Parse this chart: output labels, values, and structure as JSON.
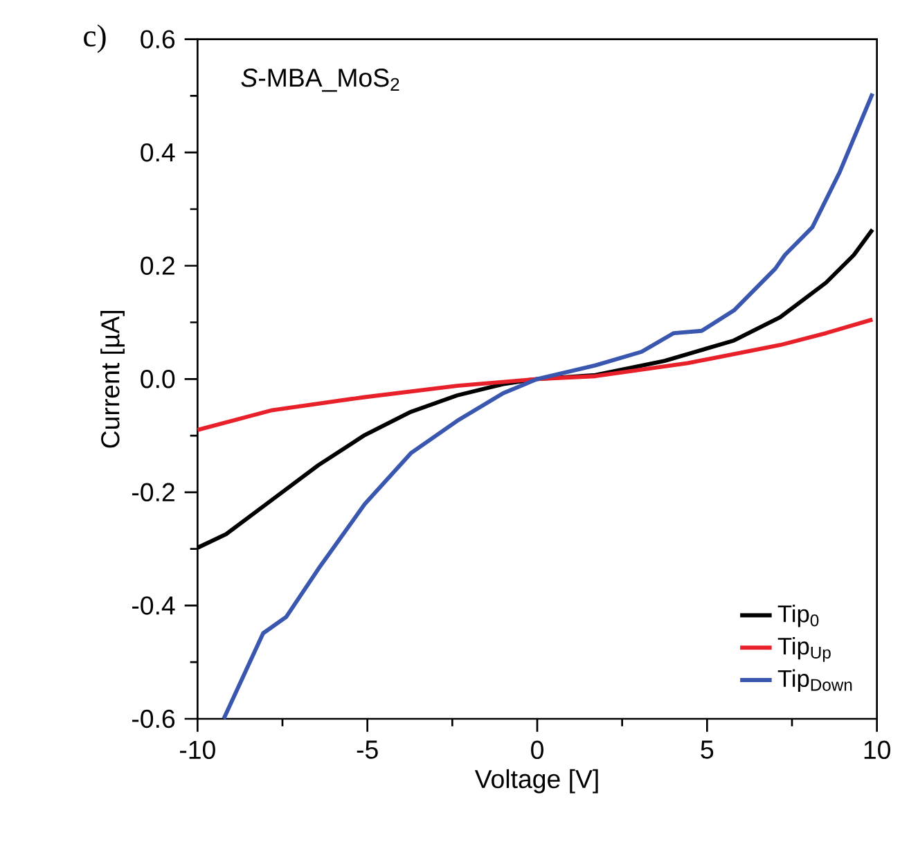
{
  "chart_data": {
    "type": "line",
    "xlabel": "Voltage [V]",
    "ylabel": "Current [µA]",
    "annotations": [
      "c)",
      "*S*-MBA_MoS$_{2}$"
    ],
    "xlim": [
      -10,
      10
    ],
    "ylim": [
      -0.6,
      0.6
    ],
    "xticks": [
      -10,
      -5,
      0,
      5,
      10
    ],
    "yticks": [
      {
        "value": -0.6,
        "label": "-0.6"
      },
      {
        "value": -0.4,
        "label": "-0.4"
      },
      {
        "value": -0.2,
        "label": "-0.2"
      },
      {
        "value": 0,
        "label": "0.0"
      },
      {
        "value": 0.2,
        "label": "0.2"
      },
      {
        "value": 0.4,
        "label": "0.4"
      },
      {
        "value": 0.6,
        "label": "0.6"
      }
    ],
    "grid": false,
    "legend": "bottom right",
    "marker": "none",
    "line_style": "solid",
    "series": [
      {
        "name": "Tip$_{0}$",
        "color": "#000000",
        "x": [
          -10,
          -9.16,
          -7.8,
          -6.44,
          -5.08,
          -3.72,
          -2.36,
          -1.0,
          0,
          1.71,
          3.75,
          5.79,
          7.15,
          8.5,
          9.32,
          9.87
        ],
        "values": [
          -0.298,
          -0.274,
          -0.213,
          -0.152,
          -0.099,
          -0.058,
          -0.029,
          -0.009,
          0,
          0.007,
          0.032,
          0.068,
          0.109,
          0.17,
          0.219,
          0.264
        ]
      },
      {
        "name": "Tip$_{Up}$",
        "color": "#e8202a",
        "x": [
          -10,
          -7.8,
          -5.08,
          -2.36,
          0,
          1.71,
          4.43,
          7.15,
          8.5,
          9.87
        ],
        "values": [
          -0.09,
          -0.055,
          -0.032,
          -0.012,
          0,
          0.005,
          0.028,
          0.06,
          0.081,
          0.105
        ]
      },
      {
        "name": "Tip$_{Down}$",
        "color": "#3a57b0",
        "x": [
          -9.23,
          -8.07,
          -7.39,
          -6.44,
          -5.08,
          -3.72,
          -2.36,
          -1.0,
          0,
          1.71,
          3.07,
          4.02,
          4.84,
          5.79,
          7.01,
          7.29,
          8.1,
          8.91,
          9.87
        ],
        "values": [
          -0.6,
          -0.449,
          -0.42,
          -0.335,
          -0.221,
          -0.131,
          -0.074,
          -0.025,
          0,
          0.024,
          0.048,
          0.081,
          0.085,
          0.121,
          0.195,
          0.219,
          0.268,
          0.366,
          0.504
        ]
      }
    ]
  }
}
